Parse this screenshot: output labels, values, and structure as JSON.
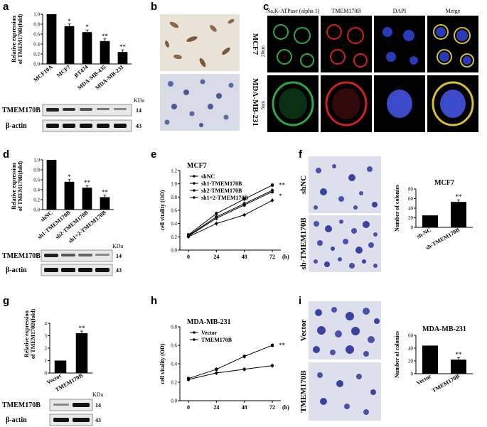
{
  "panels": {
    "a": {
      "letter": "a",
      "ylabel_line1": "Relative expression",
      "ylabel_line2": "of TMEM170B(fold)",
      "blot_labels": [
        "TMEM170B",
        "β-actin"
      ],
      "kda_header": "KDa",
      "kda": [
        "14",
        "43"
      ]
    },
    "b": {
      "letter": "b",
      "labels": [
        "MCF7",
        "MDA-MB-231"
      ]
    },
    "c": {
      "letter": "c",
      "columns": [
        "Na,K-ATPase (alpha 1)",
        "TMEM170B",
        "DAPI",
        "Merge"
      ],
      "scale_bars": [
        "20um",
        "5um"
      ]
    },
    "d": {
      "letter": "d",
      "ylabel_line1": "Relative expression",
      "ylabel_line2": "of TMEM170B(fold)",
      "blot_labels": [
        "TMEM170B",
        "β-actin"
      ],
      "kda_header": "KDa",
      "kda": [
        "14",
        "43"
      ]
    },
    "e": {
      "letter": "e"
    },
    "f": {
      "letter": "f",
      "image_labels": [
        "shNC",
        "sh-TMEM170B"
      ]
    },
    "g": {
      "letter": "g",
      "ylabel_line1": "Relative expression",
      "ylabel_line2": "of TMEM170B(fold)",
      "blot_labels": [
        "TMEM170B",
        "β-actin"
      ],
      "kda_header": "KDa",
      "kda": [
        "14",
        "43"
      ]
    },
    "h": {
      "letter": "h"
    },
    "i": {
      "letter": "i",
      "image_labels": [
        "Vector",
        "TMEM170B"
      ]
    }
  },
  "chart_data": [
    {
      "id": "a",
      "type": "bar",
      "categories": [
        "MCF10A",
        "MCF7",
        "BT474",
        "MDA-MB-435",
        "MDA-MB-231"
      ],
      "values": [
        1.0,
        0.76,
        0.64,
        0.46,
        0.24
      ],
      "significance": [
        "",
        "*",
        "*",
        "**",
        "**"
      ],
      "ylim": [
        0,
        1.0
      ],
      "yticks": [
        "0.0",
        "0.2",
        "0.4",
        "0.6",
        "0.8",
        "1.0"
      ]
    },
    {
      "id": "d",
      "type": "bar",
      "categories": [
        "shNC",
        "sh1-TMEM170B",
        "sh2-TMEM170B",
        "sh1+2-TMEM170B"
      ],
      "values": [
        1.0,
        0.56,
        0.44,
        0.25
      ],
      "significance": [
        "",
        "*",
        "**",
        "**"
      ],
      "ylim": [
        0,
        1.0
      ],
      "yticks": [
        "0.0",
        "0.2",
        "0.4",
        "0.6",
        "0.8",
        "1.0"
      ]
    },
    {
      "id": "e",
      "type": "line",
      "title": "MCF7",
      "xlabel": "",
      "ylabel": "cell vitality (OD)",
      "x": [
        0,
        24,
        48,
        72
      ],
      "xunit": "(h)",
      "ylim": [
        0,
        1.2
      ],
      "yticks": [
        "0.0",
        "0.2",
        "0.4",
        "0.6",
        "0.8",
        "1.0",
        "1.2"
      ],
      "series": [
        {
          "name": "shNC",
          "values": [
            0.23,
            0.55,
            0.77,
            0.98
          ]
        },
        {
          "name": "sh1-TMEM170B",
          "values": [
            0.22,
            0.5,
            0.7,
            0.9
          ]
        },
        {
          "name": "sh2-TMEM170B",
          "values": [
            0.21,
            0.48,
            0.68,
            0.88
          ]
        },
        {
          "name": "sh1+2-TMEM170B",
          "values": [
            0.2,
            0.4,
            0.53,
            0.75
          ]
        }
      ],
      "annotations": [
        "**",
        "*"
      ]
    },
    {
      "id": "f",
      "type": "bar",
      "title": "MCF7",
      "ylabel": "Number of colonies",
      "categories": [
        "sh-NC",
        "sh-TMEM170B"
      ],
      "values": [
        25,
        53
      ],
      "significance": [
        "",
        "**"
      ],
      "ylim": [
        0,
        80
      ],
      "yticks": [
        "0",
        "20",
        "40",
        "60",
        "80"
      ]
    },
    {
      "id": "g",
      "type": "bar",
      "categories": [
        "Vector",
        "TMEM170B"
      ],
      "values": [
        1.0,
        3.2
      ],
      "significance": [
        "",
        "**"
      ],
      "ylim": [
        0,
        4
      ],
      "yticks": [
        "0",
        "1",
        "2",
        "3",
        "4"
      ]
    },
    {
      "id": "h",
      "type": "line",
      "title": "MDA-MB-231",
      "ylabel": "cell vitality (OD)",
      "x": [
        0,
        24,
        48,
        72
      ],
      "xunit": "(h)",
      "ylim": [
        0,
        0.8
      ],
      "yticks": [
        "0.0",
        "0.2",
        "0.4",
        "0.6",
        "0.8"
      ],
      "series": [
        {
          "name": "Vector",
          "values": [
            0.24,
            0.34,
            0.48,
            0.6
          ]
        },
        {
          "name": "TMEM170B",
          "values": [
            0.23,
            0.3,
            0.34,
            0.38
          ]
        }
      ],
      "annotations": [
        "**"
      ]
    },
    {
      "id": "i",
      "type": "bar",
      "title": "MDA-MB-231",
      "ylabel": "Number of colonies",
      "categories": [
        "Vector",
        "TMEM170B"
      ],
      "values": [
        44,
        22
      ],
      "significance": [
        "",
        "**"
      ],
      "ylim": [
        0,
        60
      ],
      "yticks": [
        "0",
        "20",
        "40",
        "60"
      ]
    }
  ]
}
